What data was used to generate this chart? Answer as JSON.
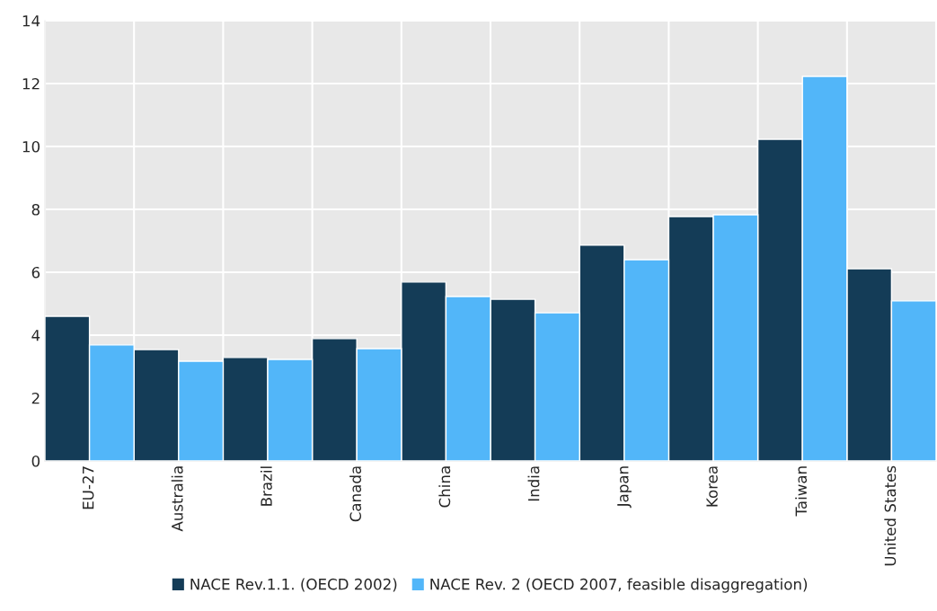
{
  "chart_data": {
    "type": "bar",
    "categories": [
      "EU-27",
      "Australia",
      "Brazil",
      "Canada",
      "China",
      "India",
      "Japan",
      "Korea",
      "Taiwan",
      "United States"
    ],
    "series": [
      {
        "name": "NACE Rev.1.1. (OECD 2002)",
        "color": "#143c57",
        "values": [
          4.6,
          3.54,
          3.29,
          3.89,
          5.69,
          5.14,
          6.86,
          7.77,
          10.23,
          6.11
        ]
      },
      {
        "name": "NACE Rev. 2 (OECD 2007, feasible disaggregation)",
        "color": "#52b6f9",
        "values": [
          3.69,
          3.17,
          3.23,
          3.57,
          5.23,
          4.71,
          6.4,
          7.83,
          12.23,
          5.09
        ]
      }
    ],
    "ylim": [
      0,
      14
    ],
    "yticks": [
      0,
      2,
      4,
      6,
      8,
      10,
      12,
      14
    ],
    "grid": true,
    "legend": "bottom"
  }
}
